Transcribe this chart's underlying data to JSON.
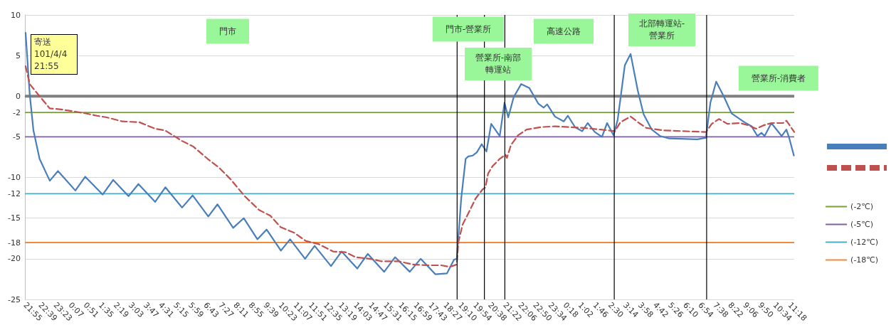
{
  "chart_data": {
    "type": "line",
    "marker": "none",
    "grid": "y",
    "legend": "right",
    "xlim": [
      "--04-04T21:55",
      "--04-06T11:32"
    ],
    "ylim": [
      -25,
      10
    ],
    "yticks": [
      10,
      5,
      0,
      -2,
      -5,
      -10,
      -12,
      -15,
      -18,
      -20,
      -25
    ],
    "xticks": [
      {
        "value": "--04-04T21:55",
        "label": "21:55"
      },
      {
        "value": "--04-04T22:39",
        "label": "22:39"
      },
      {
        "value": "--04-04T23:23",
        "label": "23:23"
      },
      {
        "value": "--04-05T00:07",
        "label": "0:07"
      },
      {
        "value": "--04-05T00:51",
        "label": "0:51"
      },
      {
        "value": "--04-05T01:35",
        "label": "1:35"
      },
      {
        "value": "--04-05T02:19",
        "label": "2:19"
      },
      {
        "value": "--04-05T03:03",
        "label": "3:03"
      },
      {
        "value": "--04-05T03:47",
        "label": "3:47"
      },
      {
        "value": "--04-05T04:31",
        "label": "4:31"
      },
      {
        "value": "--04-05T05:15",
        "label": "5:15"
      },
      {
        "value": "--04-05T05:59",
        "label": "5:59"
      },
      {
        "value": "--04-05T06:43",
        "label": "6:43"
      },
      {
        "value": "--04-05T07:27",
        "label": "7:27"
      },
      {
        "value": "--04-05T08:11",
        "label": "8:11"
      },
      {
        "value": "--04-05T08:55",
        "label": "8:55"
      },
      {
        "value": "--04-05T09:39",
        "label": "9:39"
      },
      {
        "value": "--04-05T10:23",
        "label": "10:23"
      },
      {
        "value": "--04-05T11:07",
        "label": "11:07"
      },
      {
        "value": "--04-05T11:51",
        "label": "11:51"
      },
      {
        "value": "--04-05T12:35",
        "label": "12:35"
      },
      {
        "value": "--04-05T13:19",
        "label": "13:19"
      },
      {
        "value": "--04-05T14:03",
        "label": "14:03"
      },
      {
        "value": "--04-05T14:47",
        "label": "14:47"
      },
      {
        "value": "--04-05T15:31",
        "label": "15:31"
      },
      {
        "value": "--04-05T16:15",
        "label": "16:15"
      },
      {
        "value": "--04-05T16:59",
        "label": "16:59"
      },
      {
        "value": "--04-05T17:43",
        "label": "17:43"
      },
      {
        "value": "--04-05T18:27",
        "label": "18:27"
      },
      {
        "value": "--04-05T19:10",
        "label": "19:10"
      },
      {
        "value": "--04-05T19:54",
        "label": "19:54"
      },
      {
        "value": "--04-05T20:38",
        "label": "20:38"
      },
      {
        "value": "--04-05T21:22",
        "label": "21:22"
      },
      {
        "value": "--04-05T22:06",
        "label": "22:06"
      },
      {
        "value": "--04-05T22:50",
        "label": "22:50"
      },
      {
        "value": "--04-05T23:34",
        "label": "23:34"
      },
      {
        "value": "--04-06T00:18",
        "label": "0:18"
      },
      {
        "value": "--04-06T01:02",
        "label": "1:02"
      },
      {
        "value": "--04-06T01:46",
        "label": "1:46"
      },
      {
        "value": "--04-06T02:30",
        "label": "2:30"
      },
      {
        "value": "--04-06T03:14",
        "label": "3:14"
      },
      {
        "value": "--04-06T03:58",
        "label": "3:58"
      },
      {
        "value": "--04-06T04:42",
        "label": "4:42"
      },
      {
        "value": "--04-06T05:26",
        "label": "5:26"
      },
      {
        "value": "--04-06T06:10",
        "label": "6:10"
      },
      {
        "value": "--04-06T06:54",
        "label": "6:54"
      },
      {
        "value": "--04-06T07:38",
        "label": "7:38"
      },
      {
        "value": "--04-06T08:22",
        "label": "8:22"
      },
      {
        "value": "--04-06T09:06",
        "label": "9:06"
      },
      {
        "value": "--04-06T09:50",
        "label": "9:50"
      },
      {
        "value": "--04-06T10:34",
        "label": "10:34"
      },
      {
        "value": "--04-06T11:18",
        "label": "11:18"
      }
    ],
    "series": [
      {
        "color": "#4a7ebb",
        "line_style": "solid",
        "x": [
          "--04-04T21:57",
          "--04-04T22:09",
          "--04-04T22:20",
          "--04-04T22:38",
          "--04-04T23:08",
          "--04-04T23:32",
          "--04-05T00:23",
          "--04-05T00:52",
          "--04-05T01:43",
          "--04-05T02:14",
          "--04-05T02:59",
          "--04-05T03:28",
          "--04-05T04:17",
          "--04-05T04:47",
          "--04-05T05:36",
          "--04-05T06:07",
          "--04-05T06:53",
          "--04-05T07:20",
          "--04-05T08:06",
          "--04-05T08:37",
          "--04-05T09:17",
          "--04-05T09:44",
          "--04-05T10:26",
          "--04-05T10:53",
          "--04-05T11:37",
          "--04-05T12:05",
          "--04-05T12:53",
          "--04-05T13:24",
          "--04-05T14:10",
          "--04-05T14:41",
          "--04-05T15:29",
          "--04-05T16:01",
          "--04-05T16:44",
          "--04-05T17:16",
          "--04-05T17:59",
          "--04-05T18:33",
          "--04-05T18:54",
          "--04-05T19:02",
          "--04-05T19:15",
          "--04-05T19:28",
          "--04-05T19:36",
          "--04-05T19:49",
          "--04-05T20:01",
          "--04-05T20:15",
          "--04-05T20:29",
          "--04-05T20:43",
          "--04-05T21:08",
          "--04-05T21:22",
          "--04-05T21:33",
          "--04-05T21:49",
          "--04-05T22:11",
          "--04-05T22:35",
          "--04-05T23:01",
          "--04-05T23:17",
          "--04-05T23:27",
          "--04-05T23:50",
          "--04-06T00:16",
          "--04-06T00:28",
          "--04-06T00:49",
          "--04-06T01:10",
          "--04-06T01:26",
          "--04-06T01:47",
          "--04-06T02:08",
          "--04-06T02:23",
          "--04-06T02:42",
          "--04-06T02:54",
          "--04-06T03:15",
          "--04-06T03:32",
          "--04-06T03:53",
          "--04-06T04:10",
          "--04-06T04:34",
          "--04-06T04:59",
          "--04-06T05:25",
          "--04-06T06:48",
          "--04-06T07:13",
          "--04-06T07:26",
          "--04-06T07:43",
          "--04-06T08:04",
          "--04-06T08:28",
          "--04-06T09:06",
          "--04-06T09:27",
          "--04-06T09:44",
          "--04-06T09:56",
          "--04-06T10:05",
          "--04-06T10:25",
          "--04-06T10:55",
          "--04-06T11:09",
          "--04-06T11:17",
          "--04-06T11:31"
        ],
        "values": [
          7.8,
          0.3,
          -4.2,
          -7.7,
          -10.4,
          -9.2,
          -11.6,
          -9.9,
          -12.1,
          -10.3,
          -12.3,
          -10.8,
          -13,
          -11.2,
          -13.7,
          -12.2,
          -14.8,
          -13.3,
          -16.2,
          -15,
          -17.6,
          -16.4,
          -19,
          -17.6,
          -20,
          -18.4,
          -20.9,
          -19.1,
          -21.2,
          -19.4,
          -21.6,
          -19.8,
          -21.6,
          -20,
          -21.9,
          -21.8,
          -20.1,
          -20,
          -12.6,
          -7.7,
          -7.4,
          -7.3,
          -6.9,
          -5.9,
          -6.8,
          -3.4,
          -4.9,
          -0.8,
          -2.6,
          -0.1,
          1.5,
          1,
          -0.9,
          -1.4,
          -1,
          -2.5,
          -3.1,
          -2.4,
          -3.8,
          -4.3,
          -3.3,
          -4.4,
          -5,
          -3.3,
          -4.8,
          -2.9,
          3.8,
          5.2,
          0.7,
          -2.2,
          -4.1,
          -4.9,
          -5.2,
          -5.3,
          -5.1,
          -0.8,
          1.8,
          0.1,
          -2.1,
          -3.2,
          -3.7,
          -4.9,
          -4.5,
          -4.9,
          -3.3,
          -4.9,
          -4.1,
          -5.1,
          -7.3
        ]
      },
      {
        "color": "#c0504d",
        "line_style": "dashed",
        "x": [
          "--04-04T21:57",
          "--04-04T22:09",
          "--04-04T22:38",
          "--04-04T23:08",
          "--04-04T23:37",
          "--04-05T00:23",
          "--04-05T00:52",
          "--04-05T01:26",
          "--04-05T01:55",
          "--04-05T02:41",
          "--04-05T03:31",
          "--04-05T04:17",
          "--04-05T04:46",
          "--04-05T05:36",
          "--04-05T06:09",
          "--04-05T06:51",
          "--04-05T07:25",
          "--04-05T07:58",
          "--04-05T08:40",
          "--04-05T09:22",
          "--04-05T09:55",
          "--04-05T10:25",
          "--04-05T11:05",
          "--04-05T11:39",
          "--04-05T12:17",
          "--04-05T12:59",
          "--04-05T13:36",
          "--04-05T14:05",
          "--04-05T14:47",
          "--04-05T15:20",
          "--04-05T16:11",
          "--04-05T16:53",
          "--04-05T17:34",
          "--04-05T18:17",
          "--04-05T18:41",
          "--04-05T19:02",
          "--04-05T19:07",
          "--04-05T19:19",
          "--04-05T19:36",
          "--04-05T19:57",
          "--04-05T20:17",
          "--04-05T20:26",
          "--04-05T20:34",
          "--04-05T20:47",
          "--04-05T21:08",
          "--04-05T21:25",
          "--04-05T21:29",
          "--04-05T21:41",
          "--04-05T22:02",
          "--04-05T22:27",
          "--04-05T23:09",
          "--04-05T23:50",
          "--04-06T00:32",
          "--04-06T01:14",
          "--04-06T02:04",
          "--04-06T02:46",
          "--04-06T03:02",
          "--04-06T03:32",
          "--04-06T03:57",
          "--04-06T04:18",
          "--04-06T05:08",
          "--04-06T06:07",
          "--04-06T07:13",
          "--04-06T07:30",
          "--04-06T07:51",
          "--04-06T08:16",
          "--04-06T08:53",
          "--04-06T09:19",
          "--04-06T09:40",
          "--04-06T10:01",
          "--04-06T10:25",
          "--04-06T10:59",
          "--04-06T11:09",
          "--04-06T11:32"
        ],
        "values": [
          3.7,
          1.5,
          0,
          -1.5,
          -1.6,
          -1.9,
          -2.1,
          -2.4,
          -2.6,
          -3.1,
          -3.2,
          -4,
          -4.2,
          -5.5,
          -6.2,
          -7.7,
          -8.8,
          -10.2,
          -12.3,
          -14,
          -14.7,
          -16.1,
          -16.8,
          -17.8,
          -18.2,
          -19.1,
          -19.2,
          -19.8,
          -20,
          -20.3,
          -20.3,
          -20.7,
          -20.8,
          -20.8,
          -21,
          -20.7,
          -17.9,
          -15.8,
          -14.4,
          -12.6,
          -11.5,
          -11.2,
          -9.5,
          -8.6,
          -7.7,
          -7.2,
          -7.6,
          -6,
          -4.8,
          -4.1,
          -3.8,
          -3.7,
          -3.8,
          -3.9,
          -4.1,
          -4.3,
          -3.2,
          -2.5,
          -3.3,
          -3.9,
          -4.2,
          -4.3,
          -4.4,
          -3.4,
          -2.8,
          -3.4,
          -3.3,
          -3.6,
          -4,
          -3.6,
          -3.3,
          -3.3,
          -3,
          -4.4
        ]
      }
    ],
    "ref_lines": [
      {
        "axis": "y",
        "value": 0,
        "label": null,
        "color": "#808080"
      },
      {
        "axis": "y",
        "value": -2,
        "label": "(-2℃)",
        "color": "#77a03a"
      },
      {
        "axis": "y",
        "value": -5,
        "label": "(-5℃)",
        "color": "#7f60a0"
      },
      {
        "axis": "y",
        "value": -12,
        "label": "(-12℃)",
        "color": "#4bacc6"
      },
      {
        "axis": "y",
        "value": -18,
        "label": "(-18℃)",
        "color": "#f08a3a"
      },
      {
        "axis": "x",
        "value": "--04-05T19:03",
        "label": null,
        "color": "#000000"
      },
      {
        "axis": "x",
        "value": "--04-05T20:23",
        "label": null,
        "color": "#000000"
      },
      {
        "axis": "x",
        "value": "--04-05T21:23",
        "label": null,
        "color": "#000000"
      },
      {
        "axis": "x",
        "value": "--04-06T02:44",
        "label": null,
        "color": "#000000"
      },
      {
        "axis": "x",
        "value": "--04-06T07:15",
        "label": null,
        "color": "#000000"
      }
    ],
    "annotations": [
      "寄送\n101/4/4\n21:55",
      "門市",
      "門市-營業所",
      "營業所-南部轉運站",
      "高速公路",
      "北部轉運站-營業所",
      "營業所-消費者"
    ]
  }
}
